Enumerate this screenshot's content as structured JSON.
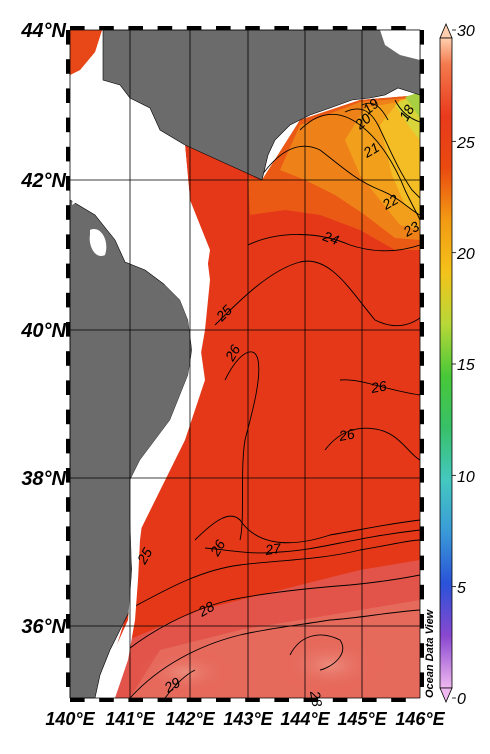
{
  "map": {
    "lat_labels": [
      {
        "text": "44°N",
        "lat": 44
      },
      {
        "text": "42°N",
        "lat": 42
      },
      {
        "text": "40°N",
        "lat": 40
      },
      {
        "text": "38°N",
        "lat": 38
      },
      {
        "text": "36°N",
        "lat": 36
      }
    ],
    "lon_labels": [
      {
        "text": "140°E",
        "lon": 140
      },
      {
        "text": "141°E",
        "lon": 141
      },
      {
        "text": "142°E",
        "lon": 142
      },
      {
        "text": "143°E",
        "lon": 143
      },
      {
        "text": "144°E",
        "lon": 144
      },
      {
        "text": "145°E",
        "lon": 145
      },
      {
        "text": "146°E",
        "lon": 146
      }
    ],
    "contour_labels": [
      {
        "text": "19"
      },
      {
        "text": "20"
      },
      {
        "text": "21"
      },
      {
        "text": "22"
      },
      {
        "text": "23"
      },
      {
        "text": "18"
      },
      {
        "text": "24"
      },
      {
        "text": "25"
      },
      {
        "text": "26"
      },
      {
        "text": "26"
      },
      {
        "text": "26"
      },
      {
        "text": "26"
      },
      {
        "text": "27"
      },
      {
        "text": "25"
      },
      {
        "text": "28"
      },
      {
        "text": "29"
      },
      {
        "text": "28"
      }
    ],
    "land_color": "#6b6b6b",
    "lon_range": [
      140,
      146
    ],
    "lat_range": [
      35,
      44
    ]
  },
  "colorbar": {
    "ticks": [
      "30",
      "25",
      "20",
      "15",
      "10",
      "5",
      "0"
    ],
    "tick_values": [
      30,
      25,
      20,
      15,
      10,
      5,
      0
    ],
    "range": [
      0,
      30
    ],
    "watermark": "Ocean Data View"
  }
}
